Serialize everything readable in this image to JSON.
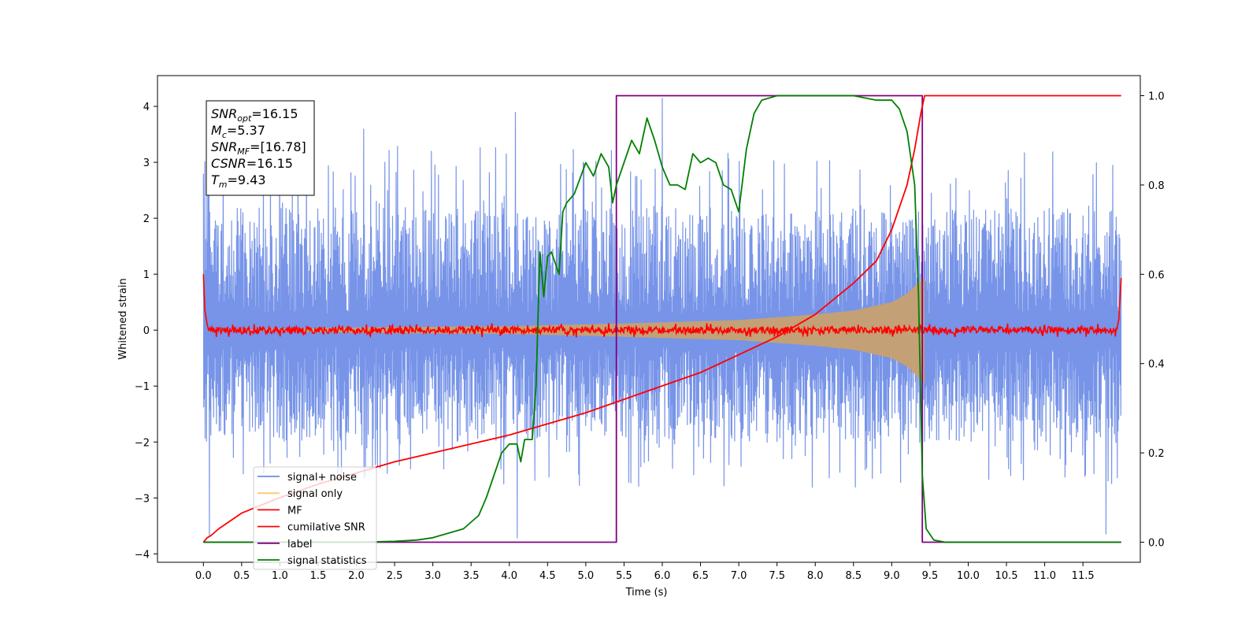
{
  "chart_data": {
    "type": "line",
    "title": "",
    "xlabel": "Time (s)",
    "ylabel": "Whitened strain",
    "y2label": "",
    "xlim": [
      -0.6,
      12.25
    ],
    "ylim": [
      -4.15,
      4.55
    ],
    "y2lim": [
      -0.045,
      1.045
    ],
    "x_ticks": [
      0.0,
      0.5,
      1.0,
      1.5,
      2.0,
      2.5,
      3.0,
      3.5,
      4.0,
      4.5,
      5.0,
      5.5,
      6.0,
      6.5,
      7.0,
      7.5,
      8.0,
      8.5,
      9.0,
      9.5,
      10.0,
      10.5,
      11.0,
      11.5
    ],
    "x_tick_labels": [
      "0.0",
      "0.5",
      "1.0",
      "1.5",
      "2.0",
      "2.5",
      "3.0",
      "3.5",
      "4.0",
      "4.5",
      "5.0",
      "5.5",
      "6.0",
      "6.5",
      "7.0",
      "7.5",
      "8.0",
      "8.5",
      "9.0",
      "9.5",
      "10.0",
      "10.5",
      "11.0",
      "11.5"
    ],
    "y_ticks": [
      4,
      3,
      2,
      1,
      0,
      -1,
      -2,
      -3,
      -4
    ],
    "y_tick_labels": [
      "4",
      "3",
      "2",
      "1",
      "0",
      "−1",
      "−2",
      "−3",
      "−4"
    ],
    "y2_ticks": [
      1.0,
      0.8,
      0.6,
      0.4,
      0.2,
      0.0
    ],
    "y2_tick_labels": [
      "1.0",
      "0.8",
      "0.6",
      "0.4",
      "0.2",
      "0.0"
    ],
    "grid": false,
    "legend_position": "lower-left",
    "legend": [
      {
        "label": "signal+ noise",
        "color": "#6b8be6"
      },
      {
        "label": "signal only",
        "color": "#ffc97a"
      },
      {
        "label": "MF",
        "color": "#ff0000"
      },
      {
        "label": "cumilative SNR",
        "color": "#ff0000"
      },
      {
        "label": "label",
        "color": "#800080"
      },
      {
        "label": "signal statistics",
        "color": "#008000"
      }
    ],
    "annotation": {
      "lines": [
        {
          "var": "SNR",
          "sub": "opt",
          "value": "=16.15"
        },
        {
          "var": "M",
          "sub": "c",
          "value": "=5.37"
        },
        {
          "var": "SNR",
          "sub": "MF",
          "value": "=[16.78]"
        },
        {
          "var": "CSNR",
          "sub": "",
          "value": "=16.15"
        },
        {
          "var": "T",
          "sub": "m",
          "value": "=9.43"
        }
      ]
    },
    "series": [
      {
        "name": "signal+ noise",
        "axis": "left",
        "style": "noise-band",
        "x_range": [
          0.0,
          12.0
        ],
        "color": "#6b8be6",
        "typical_range": [
          -2.0,
          2.2
        ],
        "extreme_range": [
          -3.75,
          4.2
        ],
        "note_spikes": [
          [
            0.05,
            2.8
          ],
          [
            0.08,
            -3.7
          ],
          [
            1.0,
            3.75
          ],
          [
            2.1,
            3.6
          ],
          [
            4.08,
            3.9
          ],
          [
            4.1,
            -3.72
          ],
          [
            6.0,
            4.15
          ],
          [
            11.8,
            -3.65
          ]
        ]
      },
      {
        "name": "signal only",
        "axis": "left",
        "style": "chirp-envelope",
        "x_range": [
          0.0,
          9.43
        ],
        "color": "#c8a070",
        "envelope": [
          [
            0.0,
            0.0
          ],
          [
            2.0,
            0.05
          ],
          [
            4.0,
            0.07
          ],
          [
            5.5,
            0.12
          ],
          [
            7.0,
            0.18
          ],
          [
            8.0,
            0.28
          ],
          [
            8.5,
            0.35
          ],
          [
            9.0,
            0.5
          ],
          [
            9.2,
            0.65
          ],
          [
            9.35,
            0.85
          ],
          [
            9.43,
            0.95
          ]
        ]
      },
      {
        "name": "MF",
        "axis": "left",
        "style": "noisy-flat",
        "x_range": [
          0.0,
          12.0
        ],
        "color": "#ff0000",
        "baseline": 0.0,
        "amplitude": 0.08,
        "edges": [
          [
            0.0,
            1.0
          ],
          [
            0.02,
            0.35
          ],
          [
            0.05,
            0.1
          ],
          [
            11.97,
            0.2
          ],
          [
            12.0,
            0.93
          ]
        ]
      },
      {
        "name": "cumilative SNR",
        "axis": "right",
        "color": "#ff0000",
        "x": [
          0.0,
          0.05,
          0.1,
          0.2,
          0.5,
          1.0,
          1.5,
          2.0,
          2.5,
          3.0,
          3.5,
          4.0,
          4.5,
          5.0,
          5.5,
          6.0,
          6.5,
          7.0,
          7.5,
          8.0,
          8.5,
          8.8,
          9.0,
          9.2,
          9.3,
          9.38,
          9.43,
          12.0
        ],
        "y": [
          0.0,
          0.01,
          0.015,
          0.03,
          0.065,
          0.1,
          0.13,
          0.155,
          0.18,
          0.2,
          0.22,
          0.24,
          0.265,
          0.29,
          0.32,
          0.35,
          0.38,
          0.42,
          0.46,
          0.51,
          0.58,
          0.63,
          0.7,
          0.8,
          0.88,
          0.96,
          1.0,
          1.0
        ]
      },
      {
        "name": "label",
        "axis": "right",
        "color": "#800080",
        "x": [
          0.0,
          5.4,
          5.4,
          9.4,
          9.4,
          12.0
        ],
        "y": [
          0.0,
          0.0,
          1.0,
          1.0,
          0.0,
          0.0
        ]
      },
      {
        "name": "signal statistics",
        "axis": "right",
        "color": "#008000",
        "x": [
          0.0,
          1.0,
          2.0,
          2.5,
          2.8,
          3.0,
          3.2,
          3.4,
          3.5,
          3.6,
          3.7,
          3.8,
          3.9,
          4.0,
          4.1,
          4.15,
          4.2,
          4.3,
          4.35,
          4.4,
          4.45,
          4.5,
          4.55,
          4.65,
          4.7,
          4.75,
          4.85,
          5.0,
          5.1,
          5.2,
          5.3,
          5.35,
          5.4,
          5.5,
          5.6,
          5.7,
          5.8,
          5.9,
          6.0,
          6.1,
          6.2,
          6.3,
          6.4,
          6.5,
          6.6,
          6.7,
          6.8,
          6.9,
          7.0,
          7.1,
          7.2,
          7.3,
          7.5,
          8.0,
          8.5,
          8.8,
          9.0,
          9.1,
          9.2,
          9.3,
          9.35,
          9.4,
          9.45,
          9.55,
          9.7,
          12.0
        ],
        "y": [
          0.0,
          0.0,
          0.0,
          0.002,
          0.005,
          0.01,
          0.02,
          0.03,
          0.045,
          0.06,
          0.1,
          0.15,
          0.2,
          0.22,
          0.22,
          0.18,
          0.23,
          0.23,
          0.35,
          0.65,
          0.55,
          0.64,
          0.65,
          0.6,
          0.74,
          0.76,
          0.78,
          0.85,
          0.82,
          0.87,
          0.84,
          0.76,
          0.8,
          0.85,
          0.9,
          0.87,
          0.95,
          0.9,
          0.84,
          0.8,
          0.8,
          0.79,
          0.87,
          0.85,
          0.86,
          0.85,
          0.8,
          0.79,
          0.74,
          0.88,
          0.96,
          0.99,
          1.0,
          1.0,
          1.0,
          0.99,
          0.99,
          0.97,
          0.92,
          0.8,
          0.55,
          0.15,
          0.03,
          0.005,
          0.0,
          0.0
        ]
      }
    ]
  }
}
